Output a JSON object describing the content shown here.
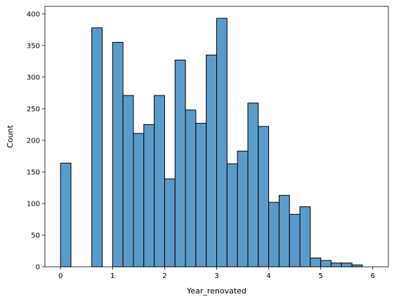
{
  "chart_data": {
    "type": "bar",
    "title": "",
    "xlabel": "Year_renovated",
    "ylabel": "Count",
    "xlim": [
      -0.3,
      6.3
    ],
    "ylim": [
      0,
      412
    ],
    "xticks": [
      0,
      1,
      2,
      3,
      4,
      5,
      6
    ],
    "yticks": [
      0,
      50,
      100,
      150,
      200,
      250,
      300,
      350,
      400
    ],
    "grid": false,
    "legend": "none",
    "bar_fill": "#5b9bc9",
    "bar_edge": "#000000",
    "bin_edges": [
      0,
      0.2,
      0.4,
      0.6,
      0.8,
      1.0,
      1.2,
      1.4,
      1.6,
      1.8,
      2.0,
      2.2,
      2.4,
      2.6,
      2.8,
      3.0,
      3.2,
      3.4,
      3.6,
      3.8,
      4.0,
      4.2,
      4.4,
      4.6,
      4.8,
      5.0,
      5.2,
      5.4,
      5.6,
      5.8,
      6.0
    ],
    "values": [
      164,
      0,
      0,
      378,
      0,
      355,
      271,
      211,
      225,
      271,
      139,
      327,
      248,
      227,
      335,
      393,
      163,
      183,
      259,
      222,
      102,
      113,
      83,
      95,
      14,
      10,
      6,
      6,
      3,
      0
    ]
  }
}
